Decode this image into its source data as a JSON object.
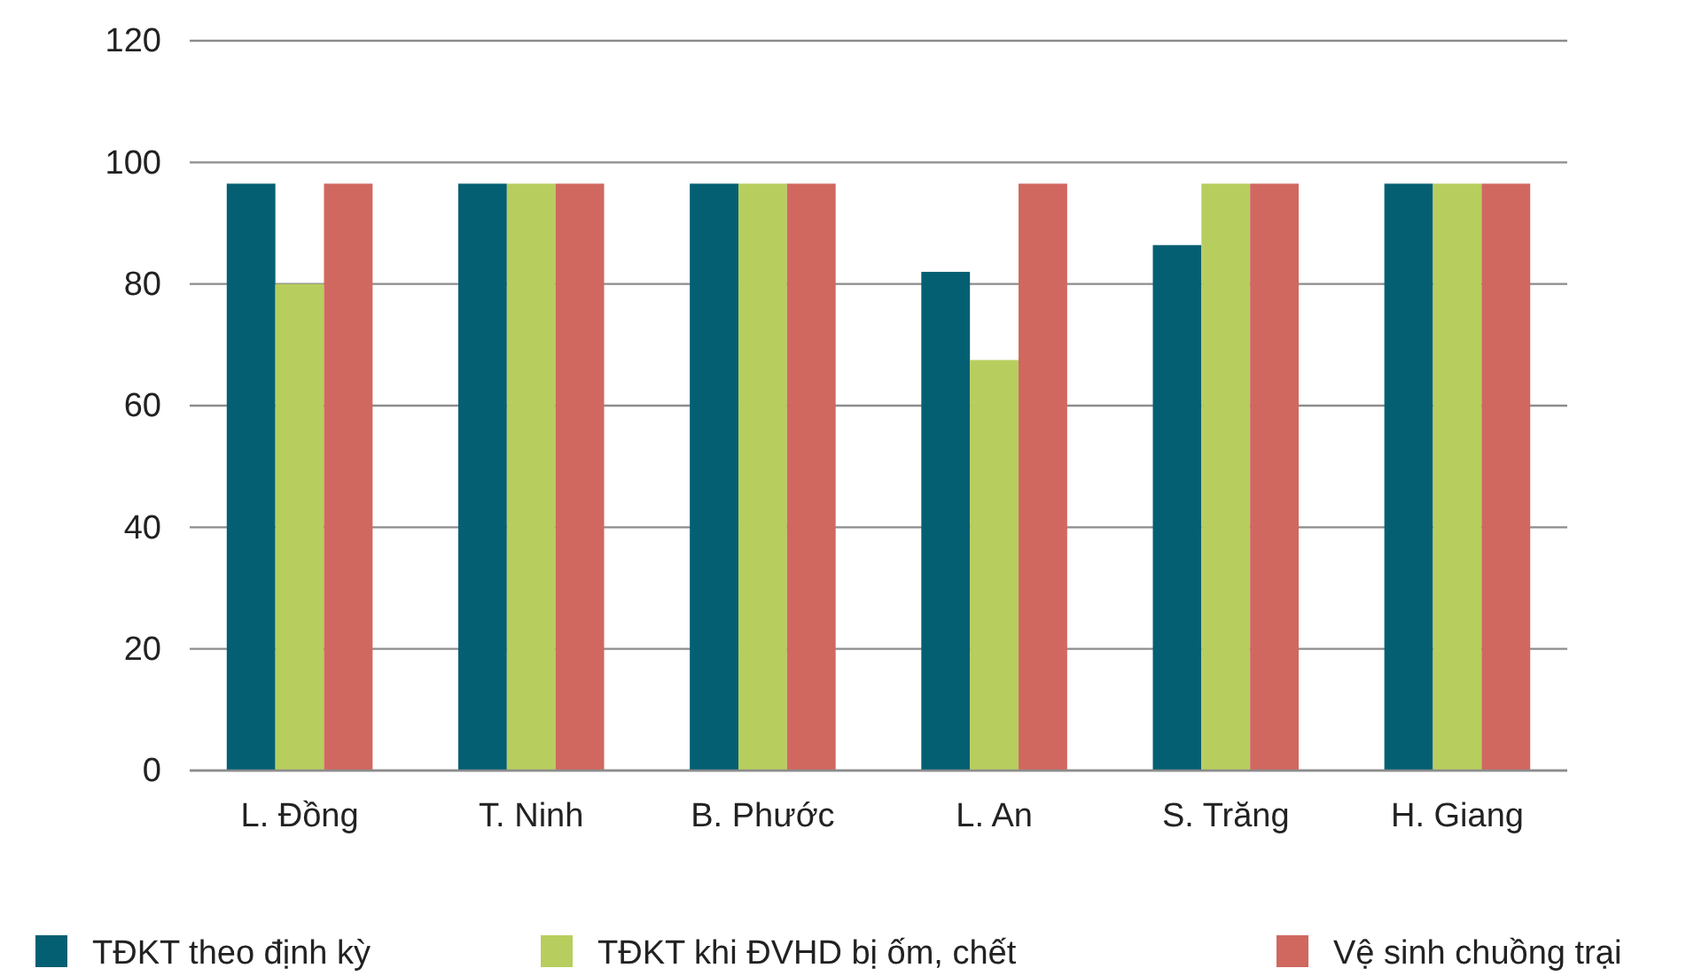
{
  "chart_data": {
    "type": "bar",
    "categories": [
      "L. Đồng",
      "T. Ninh",
      "B. Phước",
      "L. An",
      "S. Trăng",
      "H. Giang"
    ],
    "series": [
      {
        "name": "TĐKT theo định kỳ",
        "color": "#055f72",
        "values": [
          96.5,
          96.5,
          96.5,
          82,
          86.4,
          96.5
        ]
      },
      {
        "name": "TĐKT khi ĐVHD bị ốm, chết",
        "color": "#b7ce5e",
        "values": [
          80,
          96.5,
          96.5,
          67.5,
          96.5,
          96.5
        ]
      },
      {
        "name": "Vệ sinh chuồng trại",
        "color": "#d06860",
        "values": [
          96.5,
          96.5,
          96.5,
          96.5,
          96.5,
          96.5
        ]
      }
    ],
    "ylim": [
      0,
      120
    ],
    "yticks": [
      0,
      20,
      40,
      60,
      80,
      100,
      120
    ],
    "grid": "y",
    "legend": "bottom"
  }
}
